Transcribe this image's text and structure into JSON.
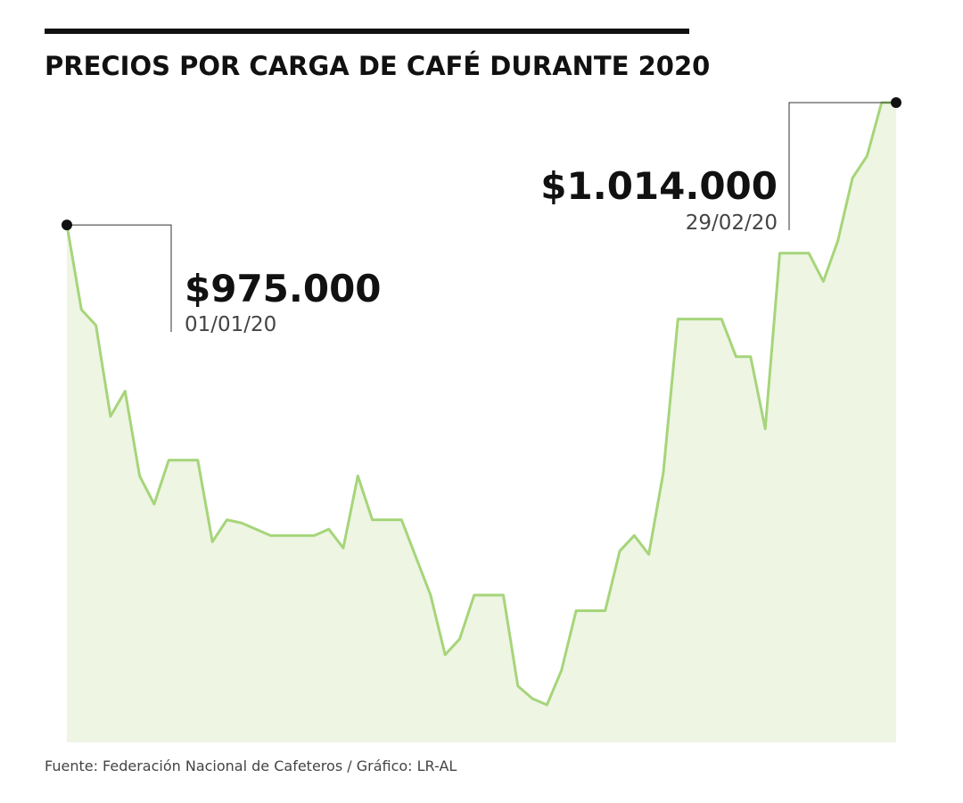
{
  "chart_data": {
    "type": "area",
    "title": "PRECIOS POR CARGA DE CAFÉ DURANTE 2020",
    "source": "Fuente: Federación Nacional de Cafeteros / Gráfico: LR-AL",
    "line_color": "#a6d57a",
    "fill_color": "#eef5e3",
    "categories": [
      "01/01/20",
      null,
      null,
      null,
      null,
      null,
      null,
      null,
      null,
      null,
      null,
      null,
      null,
      null,
      null,
      null,
      null,
      null,
      null,
      null,
      null,
      null,
      null,
      null,
      null,
      null,
      null,
      null,
      null,
      null,
      null,
      null,
      null,
      null,
      null,
      null,
      null,
      null,
      null,
      null,
      null,
      null,
      null,
      null,
      null,
      null,
      null,
      null,
      null,
      null,
      null,
      null,
      null,
      null,
      null,
      null,
      null,
      "29/02/20"
    ],
    "values": [
      975000,
      948000,
      943000,
      914000,
      922000,
      895000,
      886000,
      900000,
      900000,
      900000,
      874000,
      881000,
      880000,
      878000,
      876000,
      876000,
      876000,
      876000,
      878000,
      872000,
      895000,
      881000,
      881000,
      881000,
      869000,
      857000,
      838000,
      843000,
      857000,
      857000,
      857000,
      828000,
      824000,
      822000,
      833000,
      852000,
      852000,
      852000,
      871000,
      876000,
      870000,
      896000,
      945000,
      945000,
      945000,
      945000,
      933000,
      933000,
      910000,
      966000,
      966000,
      966000,
      957000,
      970000,
      990000,
      997000,
      1014000,
      1014000
    ],
    "value_labels": [
      "$975.000",
      null,
      null,
      null,
      null,
      null,
      null,
      null,
      null,
      null,
      null,
      null,
      null,
      null,
      null,
      null,
      null,
      null,
      null,
      null,
      null,
      null,
      null,
      null,
      null,
      null,
      null,
      null,
      null,
      null,
      null,
      null,
      null,
      null,
      null,
      null,
      null,
      null,
      null,
      null,
      null,
      null,
      null,
      null,
      null,
      null,
      null,
      null,
      null,
      null,
      null,
      null,
      null,
      null,
      null,
      null,
      null,
      "$1.014.000"
    ]
  }
}
